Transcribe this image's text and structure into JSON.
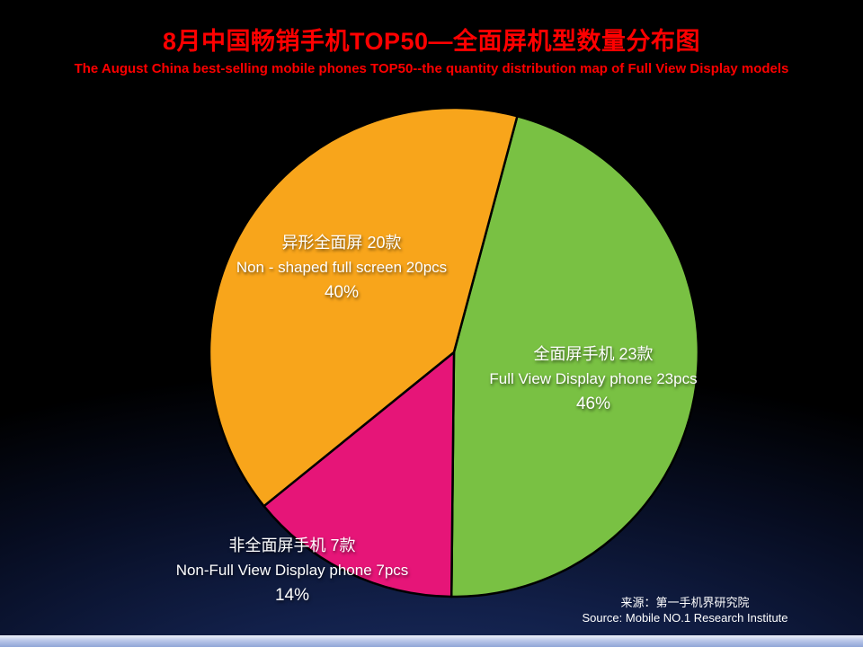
{
  "header": {
    "title": "8月中国畅销手机TOP50—全面屏机型数量分布图",
    "subtitle": "The August China best-selling mobile phones TOP50--the quantity distribution map of Full View Display models",
    "title_color": "#ff0000"
  },
  "chart_data": {
    "type": "pie",
    "title": "8月中国畅销手机TOP50—全面屏机型数量分布图",
    "rotation": "clockwise",
    "start_angle_deg": 15,
    "total_models": 50,
    "stroke_color": "#000000",
    "slices": [
      {
        "id": "full-view",
        "label_zh": "全面屏手机 23款",
        "label_en": "Full View Display phone 23pcs",
        "value": 23,
        "percent": "46%",
        "color": "#79c143"
      },
      {
        "id": "non-full-view",
        "label_zh": "非全面屏手机 7款",
        "label_en": "Non-Full View Display phone 7pcs",
        "value": 7,
        "percent": "14%",
        "color": "#e61578"
      },
      {
        "id": "non-shaped",
        "label_zh": "异形全面屏 20款",
        "label_en": "Non - shaped full screen 20pcs",
        "value": 20,
        "percent": "40%",
        "color": "#f8a51b"
      }
    ]
  },
  "source": {
    "line_zh": "来源：第一手机界研究院",
    "line_en": "Source: Mobile NO.1 Research Institute"
  }
}
